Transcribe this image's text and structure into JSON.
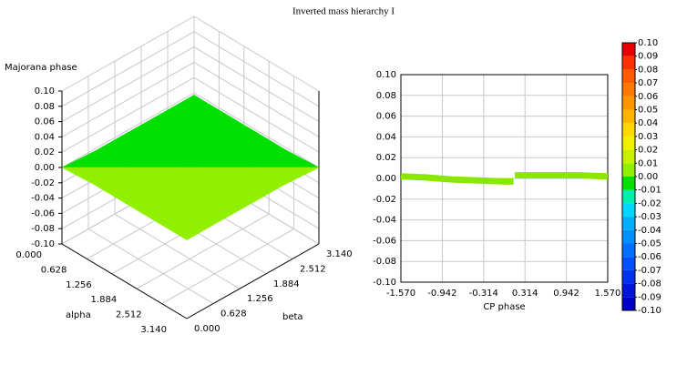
{
  "title": "Inverted mass hierarchy I",
  "chart_data": [
    {
      "type": "surface3d",
      "zlabel": "Majorana phase",
      "xlabel": "alpha",
      "ylabel": "beta",
      "x": [
        0,
        0.785,
        1.57,
        2.355,
        3.14
      ],
      "y": [
        0,
        0.785,
        1.57,
        2.355,
        3.14
      ],
      "z": [
        [
          0,
          -0.003,
          -0.003,
          -0.003,
          -0.003
        ],
        [
          0.003,
          0,
          -0.003,
          -0.003,
          -0.003
        ],
        [
          0.003,
          0.003,
          0,
          -0.003,
          -0.003
        ],
        [
          0.003,
          0.003,
          0.003,
          0,
          -0.003
        ],
        [
          0.003,
          0.003,
          0.003,
          0.003,
          0
        ]
      ],
      "xlim": [
        0,
        3.14
      ],
      "ylim": [
        0,
        3.14
      ],
      "zlim": [
        -0.1,
        0.1
      ],
      "xticks": [
        {
          "value": 0,
          "label": "0.000"
        },
        0.628,
        1.256,
        1.884,
        2.512,
        {
          "value": 3.14,
          "label": "3.140"
        }
      ],
      "yticks": [
        {
          "value": 0,
          "label": "0.000"
        },
        0.628,
        1.256,
        1.884,
        2.512,
        {
          "value": 3.14,
          "label": "3.140"
        }
      ],
      "zticks": [
        {
          "value": 0.1,
          "label": "0.10"
        },
        0.08,
        0.06,
        0.04,
        0.02,
        {
          "value": 0,
          "label": "0.00"
        },
        -0.02,
        -0.04,
        -0.06,
        -0.08,
        {
          "value": -0.1,
          "label": "-0.10"
        }
      ]
    },
    {
      "type": "line",
      "xlabel": "CP phase",
      "x": [
        -1.57,
        -1.2,
        -0.8,
        -0.4,
        0,
        0.14,
        0.15,
        0.16,
        0.6,
        1.1,
        1.57
      ],
      "values": [
        0.002,
        0.001,
        -0.001,
        -0.002,
        -0.003,
        -0.003,
        null,
        0.003,
        0.003,
        0.003,
        0.002
      ],
      "color": "#8ae800",
      "xlim": [
        -1.57,
        1.57
      ],
      "ylim": [
        -0.1,
        0.1
      ],
      "grid": true,
      "xticks": [
        {
          "value": -1.57,
          "label": "-1.570"
        },
        -0.942,
        -0.314,
        0.314,
        0.942,
        {
          "value": 1.57,
          "label": "1.570"
        }
      ],
      "yticks": [
        {
          "value": 0.1,
          "label": "0.10"
        },
        0.08,
        0.06,
        0.04,
        0.02,
        {
          "value": 0,
          "label": "0.00"
        },
        -0.02,
        -0.04,
        -0.06,
        -0.08,
        {
          "value": -0.1,
          "label": "-0.10"
        }
      ]
    },
    {
      "type": "colorbar",
      "ylim": [
        -0.1,
        0.1
      ],
      "yticks": [
        {
          "value": -0.1,
          "label": "-0.10"
        },
        -0.09,
        -0.08,
        -0.07,
        -0.06,
        -0.05,
        -0.04,
        -0.03,
        -0.02,
        -0.01,
        {
          "value": 0,
          "label": "0.00"
        },
        0.01,
        0.02,
        0.03,
        0.04,
        0.05,
        0.06,
        0.07,
        0.08,
        0.09,
        {
          "value": 0.1,
          "label": "0.10"
        }
      ],
      "colors": [
        "#0000c8",
        "#0014dc",
        "#0030f0",
        "#0050ff",
        "#0070ff",
        "#0090ff",
        "#00b0ff",
        "#00d8ff",
        "#00f0b0",
        "#00e000",
        "#90f000",
        "#c8f000",
        "#f0f000",
        "#ffd800",
        "#ffb400",
        "#ff9600",
        "#ff7800",
        "#ff5a00",
        "#ff3000",
        "#e80000"
      ]
    }
  ]
}
